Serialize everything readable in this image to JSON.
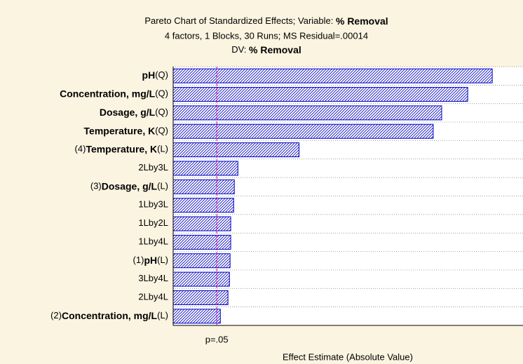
{
  "chart_data": {
    "type": "bar",
    "orientation": "horizontal",
    "title": [
      "Pareto Chart of Standardized Effects; Variable: ",
      "% Removal"
    ],
    "subtitle": "4 factors, 1 Blocks, 30 Runs; MS Residual=.00014",
    "dv": [
      "DV: ",
      "% Removal"
    ],
    "xlabel": "Effect Estimate (Absolute Value)",
    "categories": [
      {
        "name": "pH",
        "post": "(Q)"
      },
      {
        "name": "Concentration, mg/L",
        "post": "(Q)"
      },
      {
        "name": "Dosage, g/L",
        "post": "(Q)"
      },
      {
        "name": "Temperature, K",
        "post": "(Q)"
      },
      {
        "pre": "(4)",
        "name": "Temperature, K",
        "post": "(L)"
      },
      {
        "text": "2Lby3L"
      },
      {
        "pre": "(3)",
        "name": "Dosage, g/L",
        "post": "(L)"
      },
      {
        "text": "1Lby3L"
      },
      {
        "text": "1Lby2L"
      },
      {
        "text": "1Lby4L"
      },
      {
        "pre": "(1)",
        "name": "pH",
        "post": "(L)"
      },
      {
        "text": "3Lby4L"
      },
      {
        "text": "2Lby4L"
      },
      {
        "pre": "(2)",
        "name": "Concentration, mg/L",
        "post": "(L)"
      }
    ],
    "values": [
      15.08,
      13.92,
      12.69,
      12.29,
      5.95,
      3.06,
      2.89,
      2.86,
      2.72,
      2.72,
      2.69,
      2.66,
      2.59,
      2.23
    ],
    "color": "#0000c0",
    "xlim": [
      0,
      16.5
    ],
    "reference_line": {
      "value": 2.06,
      "label": "p=.05",
      "color": "#c000c0"
    },
    "grid": true
  }
}
